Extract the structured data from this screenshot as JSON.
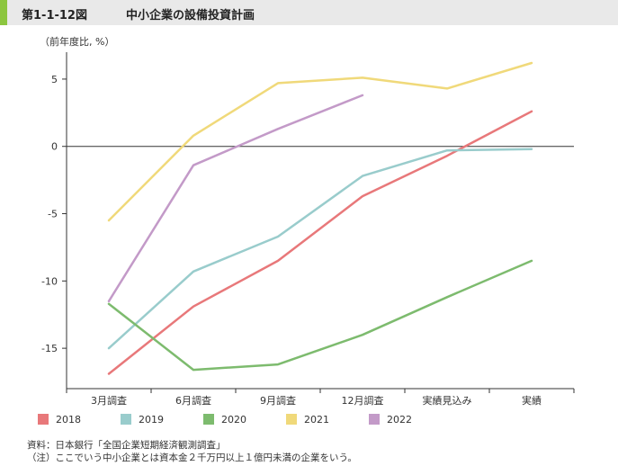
{
  "header": {
    "figure_number": "第1-1-12図",
    "title": "中小企業の設備投資計画"
  },
  "unit_label": "（前年度比, %）",
  "chart_data": {
    "type": "line",
    "categories": [
      "3月調査",
      "6月調査",
      "9月調査",
      "12月調査",
      "実績見込み",
      "実績"
    ],
    "ylim": [
      -18,
      7
    ],
    "yticks": [
      5,
      0,
      -5,
      -10,
      -15
    ],
    "ytick_labels": [
      "5",
      "0",
      "-5",
      "-10",
      "-15"
    ],
    "zero_line": true,
    "grid": false,
    "legend_position": "bottom",
    "series": [
      {
        "name": "2018",
        "color": "#e8787a",
        "values": [
          -16.9,
          -11.9,
          -8.5,
          -3.7,
          -0.7,
          2.6
        ]
      },
      {
        "name": "2019",
        "color": "#99cccc",
        "values": [
          -15.0,
          -9.3,
          -6.7,
          -2.2,
          -0.3,
          -0.2
        ]
      },
      {
        "name": "2020",
        "color": "#7dbb6e",
        "values": [
          -11.7,
          -16.6,
          -16.2,
          -14.0,
          -11.2,
          -8.5
        ]
      },
      {
        "name": "2021",
        "color": "#f0d97a",
        "values": [
          -5.5,
          0.8,
          4.7,
          5.1,
          4.3,
          6.2
        ]
      },
      {
        "name": "2022",
        "color": "#c39ac8",
        "values": [
          -11.5,
          -1.4,
          1.3,
          3.8,
          null,
          null
        ]
      }
    ]
  },
  "footer": {
    "source": "資料：日本銀行「全国企業短期経済観測調査」",
    "note": "（注）ここでいう中小企業とは資本金２千万円以上１億円未満の企業をいう。"
  }
}
